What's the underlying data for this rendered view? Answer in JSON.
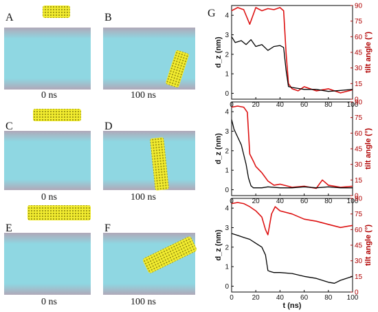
{
  "panels": [
    {
      "letter": "A",
      "time": ""
    },
    {
      "letter": "B",
      "time": "100 ns"
    },
    {
      "letter": "C",
      "time": "0 ns"
    },
    {
      "letter": "D",
      "time": "100 ns"
    },
    {
      "letter": "E",
      "time": "0 ns"
    },
    {
      "letter": "F",
      "time": "100 ns"
    }
  ],
  "time_label_A": "0 ns",
  "graph_letter": "G",
  "colors": {
    "lipid": "#7fd4e0",
    "headgroup": "#c88a8a",
    "nanotube": "#e8e020",
    "dz_line": "#000000",
    "tilt_line": "#dd1111",
    "right_axis": "#b00000"
  },
  "chart_data": [
    {
      "type": "line",
      "xlim": [
        0,
        100
      ],
      "ylim": [
        -0.3,
        4.5
      ],
      "ylim_right": [
        0,
        90
      ],
      "xticks": [
        "0",
        "20",
        "40",
        "60",
        "80",
        "100"
      ],
      "yticks": [
        "0",
        "1",
        "2",
        "3",
        "4"
      ],
      "yticks_right": [
        "0",
        "15",
        "30",
        "45",
        "60",
        "75",
        "90"
      ],
      "ylabel": "d_z (nm)",
      "ylabel_right": "tilt angle (°)",
      "series": [
        {
          "axis": "left",
          "x": [
            0,
            3,
            8,
            12,
            16,
            20,
            25,
            30,
            35,
            40,
            43,
            45,
            47,
            50,
            55,
            60,
            70,
            80,
            90,
            100
          ],
          "values": [
            2.9,
            2.6,
            2.7,
            2.5,
            2.75,
            2.4,
            2.5,
            2.2,
            2.4,
            2.45,
            2.35,
            1.2,
            0.35,
            0.3,
            0.25,
            0.2,
            0.2,
            0.1,
            0.15,
            0.2
          ]
        },
        {
          "axis": "right",
          "x": [
            0,
            5,
            10,
            15,
            20,
            25,
            30,
            35,
            40,
            43,
            45,
            47,
            50,
            55,
            60,
            70,
            80,
            90,
            100
          ],
          "values": [
            85,
            88,
            86,
            72,
            88,
            85,
            87,
            86,
            88,
            85,
            45,
            15,
            10,
            8,
            12,
            8,
            10,
            6,
            9
          ]
        }
      ]
    },
    {
      "type": "line",
      "xlim": [
        0,
        100
      ],
      "ylim": [
        -0.3,
        4.5
      ],
      "ylim_right": [
        0,
        90
      ],
      "xticks": [
        "0",
        "20",
        "40",
        "60",
        "80",
        "100"
      ],
      "yticks": [
        "0",
        "1",
        "2",
        "3",
        "4"
      ],
      "yticks_right": [
        "0",
        "15",
        "30",
        "45",
        "60",
        "75",
        "90"
      ],
      "ylabel": "d_z (nm)",
      "ylabel_right": "tilt angle (°)",
      "series": [
        {
          "axis": "left",
          "x": [
            0,
            2,
            5,
            8,
            10,
            12,
            14,
            16,
            18,
            20,
            25,
            30,
            40,
            50,
            60,
            70,
            80,
            90,
            100
          ],
          "values": [
            3.6,
            3.1,
            2.7,
            2.3,
            1.8,
            1.3,
            0.6,
            0.2,
            0.1,
            0.1,
            0.1,
            0.15,
            0.1,
            0.1,
            0.15,
            0.1,
            0.15,
            0.1,
            0.1
          ]
        },
        {
          "axis": "right",
          "x": [
            0,
            5,
            10,
            13,
            15,
            18,
            20,
            25,
            30,
            35,
            40,
            50,
            60,
            70,
            75,
            80,
            90,
            100
          ],
          "values": [
            85,
            86,
            85,
            80,
            40,
            33,
            28,
            22,
            14,
            10,
            11,
            8,
            9,
            7,
            15,
            10,
            8,
            9
          ]
        }
      ]
    },
    {
      "type": "line",
      "xlim": [
        0,
        100
      ],
      "ylim": [
        -0.3,
        4.5
      ],
      "ylim_right": [
        0,
        90
      ],
      "xticks": [
        "0",
        "20",
        "40",
        "60",
        "80",
        "100"
      ],
      "xlabel": "t (ns)",
      "yticks": [
        "0",
        "1",
        "2",
        "3",
        "4"
      ],
      "yticks_right": [
        "0",
        "15",
        "30",
        "45",
        "60",
        "75",
        "90"
      ],
      "ylabel": "d_z (nm)",
      "ylabel_right": "tilt angle (°)",
      "series": [
        {
          "axis": "left",
          "x": [
            0,
            5,
            10,
            15,
            20,
            25,
            28,
            30,
            32,
            35,
            40,
            50,
            60,
            70,
            80,
            85,
            90,
            100
          ],
          "values": [
            2.7,
            2.6,
            2.5,
            2.4,
            2.2,
            2.0,
            1.6,
            0.8,
            0.75,
            0.7,
            0.7,
            0.65,
            0.5,
            0.4,
            0.2,
            0.15,
            0.3,
            0.5
          ]
        },
        {
          "axis": "right",
          "x": [
            0,
            5,
            10,
            15,
            20,
            25,
            28,
            30,
            33,
            36,
            40,
            50,
            60,
            70,
            80,
            90,
            100
          ],
          "values": [
            85,
            86,
            85,
            82,
            78,
            72,
            60,
            55,
            75,
            82,
            78,
            75,
            70,
            68,
            65,
            62,
            64
          ]
        }
      ]
    }
  ]
}
